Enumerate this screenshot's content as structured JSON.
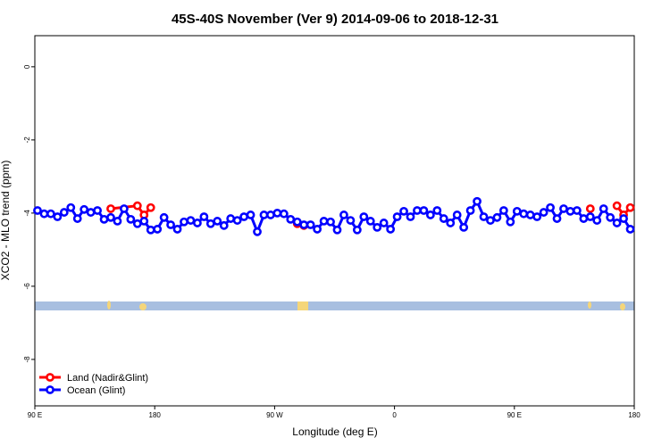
{
  "chart_data": {
    "type": "line",
    "title": "45S-40S November (Ver 9)   2014-09-06 to 2018-12-31",
    "x_label": "Longitude (deg E)",
    "y_label": "XCO2 - MLO trend (ppm)",
    "xlim": [
      90,
      540
    ],
    "ylim": [
      -9.27,
      0.85
    ],
    "xticks": [
      {
        "value": 90,
        "label": "90 E"
      },
      {
        "value": 180,
        "label": "180"
      },
      {
        "value": 270,
        "label": "90 W"
      },
      {
        "value": 360,
        "label": "0"
      },
      {
        "value": 450,
        "label": "90 E"
      },
      {
        "value": 540,
        "label": "180"
      }
    ],
    "yticks": [
      0,
      -2,
      -4,
      -6,
      -8
    ],
    "legend": "bottom-left",
    "series": [
      {
        "name": "Land (Nadir&Glint)",
        "color": "#ff0000",
        "x": [
          147,
          167,
          172,
          177,
          182,
          287,
          292,
          297,
          507,
          512,
          527,
          532,
          537
        ],
        "values": [
          -3.88,
          -3.8,
          -4.05,
          -3.85,
          null,
          -4.29,
          -4.34,
          null,
          -3.88,
          null,
          -3.8,
          -4.05,
          -3.85
        ]
      },
      {
        "name": "Ocean (Glint)",
        "color": "#0000ff",
        "x": [
          92,
          97,
          102,
          107,
          112,
          117,
          122,
          127,
          132,
          137,
          142,
          147,
          152,
          157,
          162,
          167,
          172,
          177,
          182,
          187,
          192,
          197,
          202,
          207,
          212,
          217,
          222,
          227,
          232,
          237,
          242,
          247,
          252,
          257,
          262,
          267,
          272,
          277,
          282,
          287,
          292,
          297,
          302,
          307,
          312,
          317,
          322,
          327,
          332,
          337,
          342,
          347,
          352,
          357,
          362,
          367,
          372,
          377,
          382,
          387,
          392,
          397,
          402,
          407,
          412,
          417,
          422,
          427,
          432,
          437,
          442,
          447,
          452,
          457,
          462,
          467,
          472,
          477,
          482,
          487,
          492,
          497,
          502,
          507,
          512,
          517,
          522,
          527,
          532,
          537
        ],
        "values": [
          -3.93,
          -4.02,
          -4.02,
          -4.1,
          -3.98,
          -3.85,
          -4.15,
          -3.9,
          -3.98,
          -3.93,
          -4.17,
          -4.12,
          -4.22,
          -3.88,
          -4.17,
          -4.29,
          -4.22,
          -4.46,
          -4.44,
          -4.12,
          -4.32,
          -4.44,
          -4.24,
          -4.2,
          -4.27,
          -4.1,
          -4.29,
          -4.22,
          -4.34,
          -4.15,
          -4.2,
          -4.1,
          -4.05,
          -4.51,
          -4.05,
          -4.05,
          -4.0,
          -4.02,
          -4.17,
          -4.24,
          -4.32,
          -4.32,
          -4.44,
          -4.22,
          -4.24,
          -4.46,
          -4.05,
          -4.2,
          -4.46,
          -4.1,
          -4.22,
          -4.39,
          -4.27,
          -4.44,
          -4.1,
          -3.95,
          -4.1,
          -3.93,
          -3.93,
          -4.05,
          -3.93,
          -4.15,
          -4.27,
          -4.05,
          -4.39,
          -3.93,
          -3.68,
          -4.1,
          -4.2,
          -4.12,
          -3.93,
          -4.24,
          -3.95,
          -4.02,
          -4.05,
          -4.1,
          -3.98,
          -3.85,
          -4.15,
          -3.88,
          -3.95,
          -3.93,
          -4.15,
          -4.1,
          -4.2,
          -3.88,
          -4.12,
          -4.27,
          -4.15,
          -4.44
        ]
      }
    ]
  }
}
